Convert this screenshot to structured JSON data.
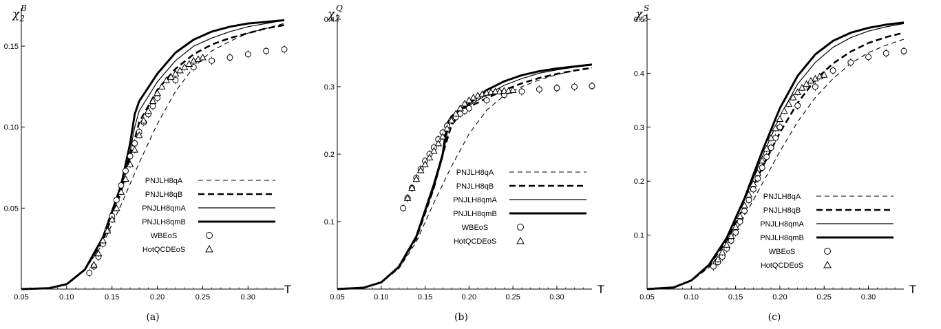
{
  "chart_data": [
    {
      "type": "line",
      "ylabel_main": "χ",
      "ylabel_sub": "2",
      "ylabel_sup": "B",
      "xlabel": "T",
      "caption": "(a)",
      "xlim": [
        0.05,
        0.34
      ],
      "ylim": [
        0,
        0.17
      ],
      "xticks": [
        "0.05",
        "0.10",
        "0.15",
        "0.20",
        "0.25",
        "0.30"
      ],
      "xtick_values": [
        0.05,
        0.1,
        0.15,
        0.2,
        0.25,
        0.3
      ],
      "yticks": [
        "0.05",
        "0.10",
        "0.15"
      ],
      "ytick_values": [
        0.05,
        0.1,
        0.15
      ],
      "legend_placement": "center-right",
      "series": [
        {
          "name": "PNJLH8qA",
          "style": "thin-dashed",
          "x": [
            0.05,
            0.08,
            0.1,
            0.12,
            0.14,
            0.16,
            0.18,
            0.2,
            0.22,
            0.24,
            0.26,
            0.28,
            0.3,
            0.32,
            0.34
          ],
          "y": [
            0,
            0.0005,
            0.003,
            0.012,
            0.028,
            0.052,
            0.078,
            0.102,
            0.122,
            0.137,
            0.147,
            0.153,
            0.158,
            0.161,
            0.164
          ]
        },
        {
          "name": "PNJLH8qB",
          "style": "thick-dashed",
          "x": [
            0.05,
            0.08,
            0.1,
            0.12,
            0.14,
            0.16,
            0.17,
            0.18,
            0.2,
            0.22,
            0.24,
            0.26,
            0.28,
            0.3,
            0.32,
            0.34
          ],
          "y": [
            0,
            0.0005,
            0.003,
            0.012,
            0.03,
            0.06,
            0.082,
            0.103,
            0.123,
            0.136,
            0.145,
            0.151,
            0.155,
            0.158,
            0.161,
            0.163
          ]
        },
        {
          "name": "PNJLH8qmA",
          "style": "thin-solid",
          "x": [
            0.05,
            0.08,
            0.1,
            0.12,
            0.14,
            0.16,
            0.17,
            0.175,
            0.18,
            0.2,
            0.22,
            0.24,
            0.26,
            0.28,
            0.3,
            0.32,
            0.34
          ],
          "y": [
            0,
            0.0005,
            0.003,
            0.012,
            0.031,
            0.062,
            0.085,
            0.1,
            0.11,
            0.128,
            0.141,
            0.15,
            0.155,
            0.159,
            0.162,
            0.164,
            0.166
          ]
        },
        {
          "name": "PNJLH8qmB",
          "style": "thick-solid",
          "x": [
            0.05,
            0.08,
            0.1,
            0.12,
            0.14,
            0.16,
            0.17,
            0.175,
            0.18,
            0.2,
            0.22,
            0.24,
            0.26,
            0.28,
            0.3,
            0.32,
            0.34
          ],
          "y": [
            0,
            0.0005,
            0.003,
            0.012,
            0.032,
            0.064,
            0.09,
            0.108,
            0.116,
            0.133,
            0.146,
            0.154,
            0.159,
            0.162,
            0.164,
            0.165,
            0.166
          ]
        },
        {
          "name": "WBEoS",
          "style": "circle",
          "x": [
            0.125,
            0.13,
            0.135,
            0.14,
            0.145,
            0.15,
            0.155,
            0.16,
            0.165,
            0.17,
            0.175,
            0.18,
            0.185,
            0.19,
            0.195,
            0.2,
            0.22,
            0.24,
            0.26,
            0.28,
            0.3,
            0.32,
            0.34
          ],
          "y": [
            0.01,
            0.014,
            0.02,
            0.028,
            0.036,
            0.045,
            0.055,
            0.064,
            0.073,
            0.082,
            0.09,
            0.097,
            0.103,
            0.108,
            0.113,
            0.118,
            0.129,
            0.137,
            0.141,
            0.143,
            0.145,
            0.147,
            0.148
          ]
        },
        {
          "name": "HotQCDEoS",
          "style": "triangle",
          "x": [
            0.13,
            0.135,
            0.14,
            0.145,
            0.15,
            0.155,
            0.16,
            0.165,
            0.17,
            0.175,
            0.18,
            0.185,
            0.19,
            0.195,
            0.2,
            0.205,
            0.21,
            0.215,
            0.22,
            0.225,
            0.23,
            0.235,
            0.24,
            0.245,
            0.25
          ],
          "y": [
            0.015,
            0.022,
            0.03,
            0.036,
            0.043,
            0.05,
            0.06,
            0.068,
            0.077,
            0.086,
            0.095,
            0.104,
            0.11,
            0.116,
            0.121,
            0.125,
            0.129,
            0.131,
            0.133,
            0.135,
            0.137,
            0.139,
            0.141,
            0.142,
            0.143
          ]
        }
      ]
    },
    {
      "type": "line",
      "ylabel_main": "χ",
      "ylabel_sub": "2",
      "ylabel_sup": "Q",
      "xlabel": "T",
      "caption": "(b)",
      "xlim": [
        0.05,
        0.34
      ],
      "ylim": [
        0,
        0.4
      ],
      "xticks": [
        "0.05",
        "0.10",
        "0.15",
        "0.20",
        "0.25",
        "0.30"
      ],
      "xtick_values": [
        0.05,
        0.1,
        0.15,
        0.2,
        0.25,
        0.3
      ],
      "yticks": [
        "0.1",
        "0.2",
        "0.3",
        "0.4"
      ],
      "ytick_values": [
        0.1,
        0.2,
        0.3,
        0.4
      ],
      "legend_placement": "center-right",
      "series": [
        {
          "name": "PNJLH8qA",
          "style": "thin-dashed",
          "x": [
            0.05,
            0.08,
            0.1,
            0.12,
            0.14,
            0.16,
            0.18,
            0.2,
            0.22,
            0.24,
            0.26,
            0.28,
            0.3,
            0.32,
            0.34
          ],
          "y": [
            0,
            0.002,
            0.01,
            0.03,
            0.07,
            0.128,
            0.182,
            0.23,
            0.265,
            0.287,
            0.3,
            0.31,
            0.318,
            0.324,
            0.328
          ]
        },
        {
          "name": "PNJLH8qB",
          "style": "thick-dashed",
          "x": [
            0.05,
            0.08,
            0.1,
            0.12,
            0.14,
            0.16,
            0.17,
            0.18,
            0.19,
            0.2,
            0.22,
            0.24,
            0.26,
            0.28,
            0.3,
            0.32,
            0.34
          ],
          "y": [
            0,
            0.002,
            0.01,
            0.032,
            0.075,
            0.15,
            0.2,
            0.243,
            0.26,
            0.27,
            0.283,
            0.295,
            0.305,
            0.313,
            0.319,
            0.324,
            0.328
          ]
        },
        {
          "name": "PNJLH8qmA",
          "style": "thin-solid",
          "x": [
            0.05,
            0.08,
            0.1,
            0.12,
            0.14,
            0.16,
            0.17,
            0.175,
            0.18,
            0.2,
            0.22,
            0.24,
            0.26,
            0.28,
            0.3,
            0.32,
            0.34
          ],
          "y": [
            0,
            0.002,
            0.01,
            0.032,
            0.076,
            0.15,
            0.195,
            0.23,
            0.254,
            0.272,
            0.288,
            0.302,
            0.312,
            0.32,
            0.325,
            0.329,
            0.332
          ]
        },
        {
          "name": "PNJLH8qmB",
          "style": "thick-solid",
          "x": [
            0.05,
            0.08,
            0.1,
            0.12,
            0.14,
            0.16,
            0.17,
            0.175,
            0.18,
            0.2,
            0.22,
            0.24,
            0.26,
            0.28,
            0.3,
            0.32,
            0.34
          ],
          "y": [
            0,
            0.002,
            0.01,
            0.033,
            0.078,
            0.155,
            0.2,
            0.245,
            0.256,
            0.275,
            0.295,
            0.308,
            0.317,
            0.323,
            0.327,
            0.33,
            0.333
          ]
        },
        {
          "name": "WBEoS",
          "style": "circle",
          "x": [
            0.125,
            0.13,
            0.135,
            0.14,
            0.145,
            0.15,
            0.155,
            0.16,
            0.165,
            0.17,
            0.175,
            0.18,
            0.185,
            0.19,
            0.195,
            0.2,
            0.22,
            0.24,
            0.26,
            0.28,
            0.3,
            0.32,
            0.34
          ],
          "y": [
            0.12,
            0.135,
            0.15,
            0.165,
            0.178,
            0.19,
            0.2,
            0.21,
            0.222,
            0.232,
            0.242,
            0.25,
            0.255,
            0.26,
            0.264,
            0.268,
            0.28,
            0.288,
            0.293,
            0.296,
            0.298,
            0.3,
            0.301
          ]
        },
        {
          "name": "HotQCDEoS",
          "style": "triangle",
          "x": [
            0.13,
            0.135,
            0.14,
            0.145,
            0.15,
            0.155,
            0.16,
            0.165,
            0.17,
            0.175,
            0.18,
            0.185,
            0.19,
            0.195,
            0.2,
            0.205,
            0.21,
            0.215,
            0.22,
            0.225,
            0.23,
            0.235,
            0.24,
            0.245,
            0.25
          ],
          "y": [
            0.135,
            0.15,
            0.163,
            0.176,
            0.185,
            0.195,
            0.205,
            0.216,
            0.226,
            0.238,
            0.25,
            0.26,
            0.268,
            0.275,
            0.28,
            0.284,
            0.287,
            0.289,
            0.291,
            0.292,
            0.293,
            0.293,
            0.294,
            0.294,
            0.295
          ]
        }
      ]
    },
    {
      "type": "line",
      "ylabel_main": "χ",
      "ylabel_sub": "2",
      "ylabel_sup": "S",
      "xlabel": "T",
      "caption": "(c)",
      "xlim": [
        0.05,
        0.34
      ],
      "ylim": [
        0,
        0.5
      ],
      "xticks": [
        "0.05",
        "0.10",
        "0.15",
        "0.20",
        "0.25",
        "0.30"
      ],
      "xtick_values": [
        0.05,
        0.1,
        0.15,
        0.2,
        0.25,
        0.3
      ],
      "yticks": [
        "0.1",
        "0.2",
        "0.3",
        "0.4",
        "0.5"
      ],
      "ytick_values": [
        0.1,
        0.2,
        0.3,
        0.4,
        0.5
      ],
      "legend_placement": "center-right",
      "series": [
        {
          "name": "PNJLH8qA",
          "style": "thin-dashed",
          "x": [
            0.05,
            0.08,
            0.1,
            0.12,
            0.14,
            0.16,
            0.18,
            0.2,
            0.22,
            0.24,
            0.26,
            0.28,
            0.3,
            0.32,
            0.34
          ],
          "y": [
            0,
            0.003,
            0.015,
            0.04,
            0.08,
            0.135,
            0.195,
            0.255,
            0.31,
            0.355,
            0.39,
            0.418,
            0.438,
            0.452,
            0.463
          ]
        },
        {
          "name": "PNJLH8qB",
          "style": "thick-dashed",
          "x": [
            0.05,
            0.08,
            0.1,
            0.12,
            0.14,
            0.16,
            0.18,
            0.2,
            0.22,
            0.24,
            0.26,
            0.28,
            0.3,
            0.32,
            0.34
          ],
          "y": [
            0,
            0.003,
            0.016,
            0.043,
            0.09,
            0.155,
            0.225,
            0.29,
            0.345,
            0.388,
            0.418,
            0.44,
            0.456,
            0.467,
            0.475
          ]
        },
        {
          "name": "PNJLH8qmA",
          "style": "thin-solid",
          "x": [
            0.05,
            0.08,
            0.1,
            0.12,
            0.14,
            0.16,
            0.18,
            0.2,
            0.22,
            0.24,
            0.26,
            0.28,
            0.3,
            0.32,
            0.34
          ],
          "y": [
            0,
            0.003,
            0.016,
            0.045,
            0.095,
            0.165,
            0.245,
            0.32,
            0.38,
            0.42,
            0.448,
            0.466,
            0.478,
            0.486,
            0.492
          ]
        },
        {
          "name": "PNJLH8qmB",
          "style": "thick-solid",
          "x": [
            0.05,
            0.08,
            0.1,
            0.12,
            0.14,
            0.16,
            0.18,
            0.2,
            0.22,
            0.24,
            0.26,
            0.28,
            0.3,
            0.32,
            0.34
          ],
          "y": [
            0,
            0.003,
            0.016,
            0.045,
            0.095,
            0.168,
            0.255,
            0.335,
            0.395,
            0.435,
            0.46,
            0.475,
            0.484,
            0.49,
            0.494
          ]
        },
        {
          "name": "WBEoS",
          "style": "circle",
          "x": [
            0.125,
            0.13,
            0.135,
            0.14,
            0.145,
            0.15,
            0.155,
            0.16,
            0.165,
            0.17,
            0.175,
            0.18,
            0.185,
            0.19,
            0.195,
            0.2,
            0.22,
            0.24,
            0.26,
            0.28,
            0.3,
            0.32,
            0.34
          ],
          "y": [
            0.042,
            0.05,
            0.06,
            0.075,
            0.09,
            0.105,
            0.125,
            0.145,
            0.165,
            0.185,
            0.205,
            0.225,
            0.245,
            0.262,
            0.28,
            0.3,
            0.34,
            0.375,
            0.405,
            0.42,
            0.43,
            0.437,
            0.441
          ]
        },
        {
          "name": "HotQCDEoS",
          "style": "triangle",
          "x": [
            0.13,
            0.135,
            0.14,
            0.145,
            0.15,
            0.155,
            0.16,
            0.165,
            0.17,
            0.175,
            0.18,
            0.185,
            0.19,
            0.195,
            0.2,
            0.205,
            0.21,
            0.215,
            0.22,
            0.225,
            0.23,
            0.235,
            0.24,
            0.245,
            0.25
          ],
          "y": [
            0.055,
            0.068,
            0.082,
            0.098,
            0.115,
            0.135,
            0.155,
            0.175,
            0.195,
            0.215,
            0.238,
            0.26,
            0.28,
            0.298,
            0.315,
            0.33,
            0.343,
            0.355,
            0.365,
            0.373,
            0.38,
            0.386,
            0.39,
            0.394,
            0.397
          ]
        }
      ]
    }
  ]
}
